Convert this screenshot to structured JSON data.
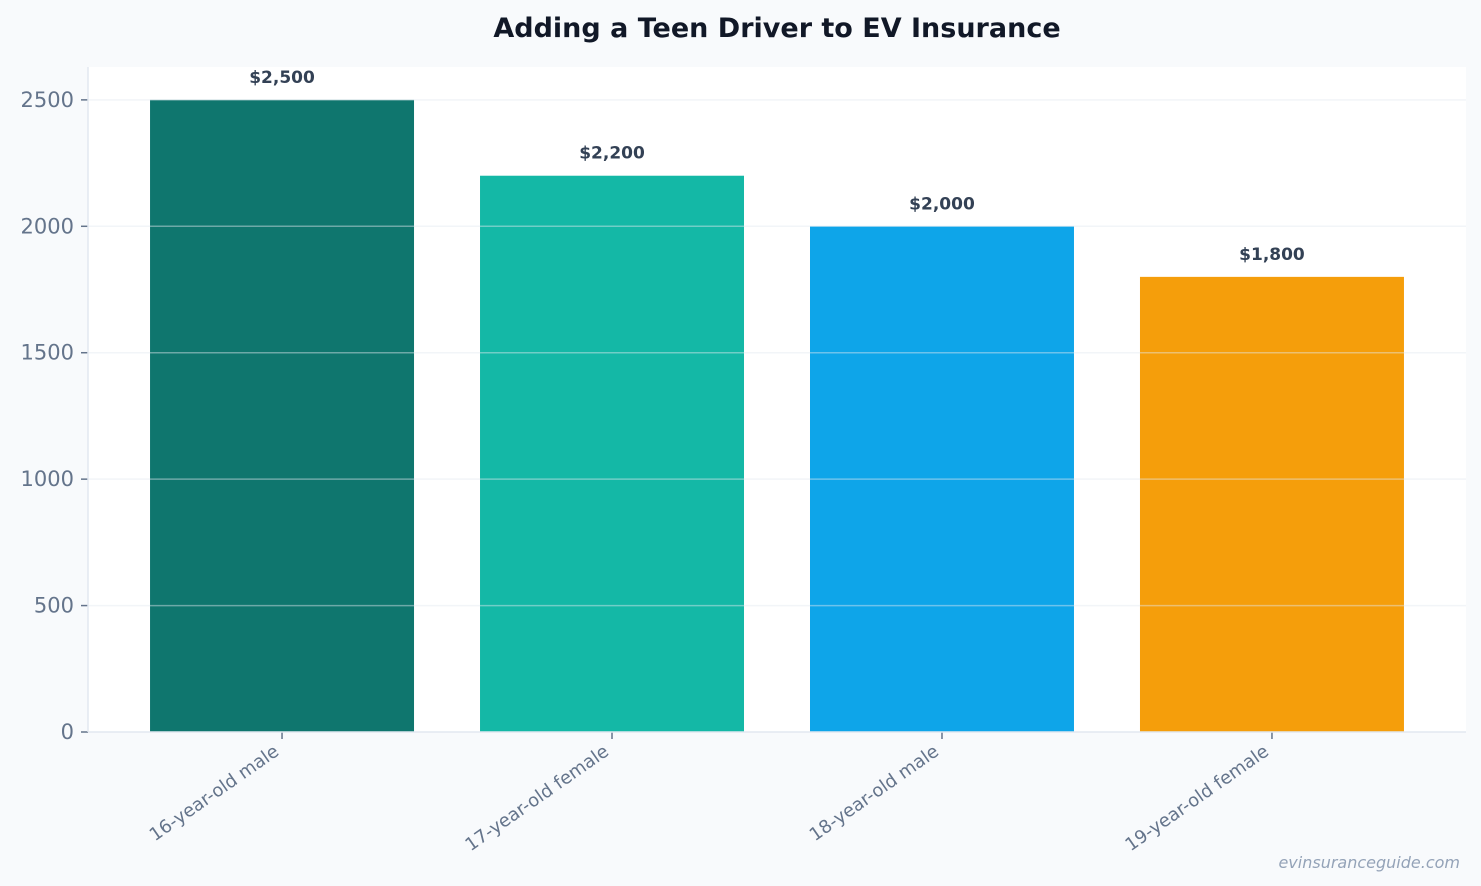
{
  "chart_data": {
    "type": "bar",
    "title": "Adding a Teen Driver to EV Insurance",
    "xlabel": "",
    "ylabel": "",
    "categories": [
      "16-year-old male",
      "17-year-old female",
      "18-year-old male",
      "19-year-old female"
    ],
    "values": [
      2500,
      2200,
      2000,
      1800
    ],
    "data_labels": [
      "$2,500",
      "$2,200",
      "$2,000",
      "$1,800"
    ],
    "colors": [
      "#0f766e",
      "#14b8a6",
      "#0ea5e9",
      "#f59e0b"
    ],
    "ylim": [
      0,
      2630
    ],
    "yticks": [
      0,
      500,
      1000,
      1500,
      2000,
      2500
    ],
    "grid": true,
    "legend": "none"
  },
  "watermark": "evinsuranceguide.com"
}
